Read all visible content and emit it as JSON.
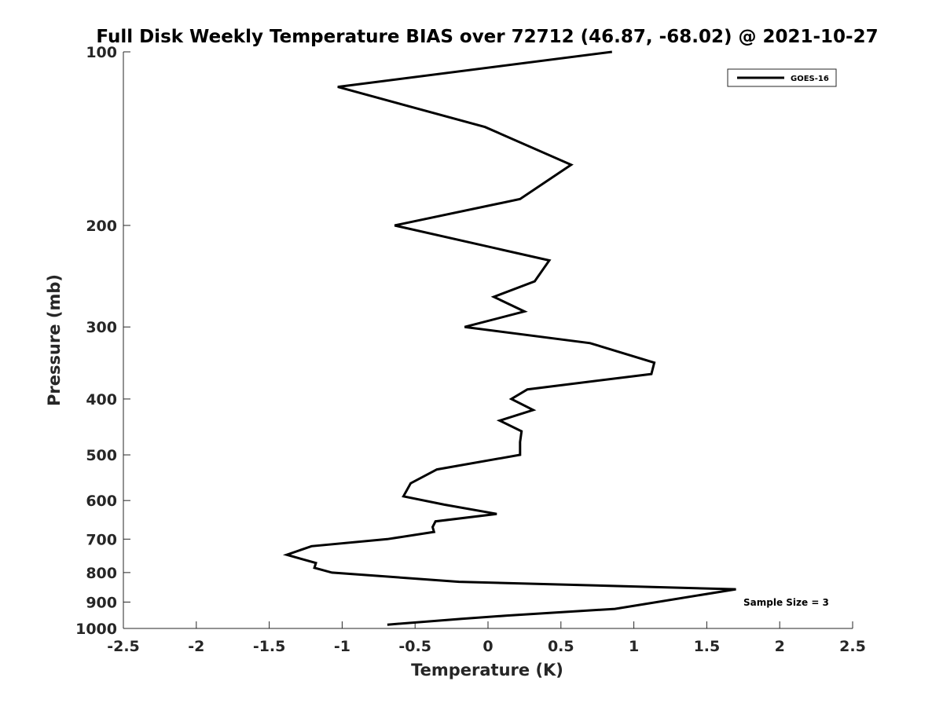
{
  "chart_data": {
    "type": "line",
    "title": "Full Disk Weekly Temperature BIAS over 72712 (46.87, -68.02) @ 2021-10-27",
    "xlabel": "Temperature (K)",
    "ylabel": "Pressure (mb)",
    "xlim": [
      -2.5,
      2.5
    ],
    "ylim": [
      100,
      1000
    ],
    "y_scale": "log",
    "y_reversed": true,
    "x_ticks": [
      "-2.5",
      "-2",
      "-1.5",
      "-1",
      "-0.5",
      "0",
      "0.5",
      "1",
      "1.5",
      "2",
      "2.5"
    ],
    "y_ticks": [
      "100",
      "200",
      "300",
      "400",
      "500",
      "600",
      "700",
      "800",
      "900",
      "1000"
    ],
    "grid": false,
    "legend_position": "top-right",
    "series": [
      {
        "name": "GOES-16",
        "color": "#000000",
        "points": [
          {
            "x": 0.85,
            "y": 100
          },
          {
            "x": -1.03,
            "y": 115
          },
          {
            "x": -0.02,
            "y": 135
          },
          {
            "x": 0.57,
            "y": 157
          },
          {
            "x": 0.22,
            "y": 180
          },
          {
            "x": -0.64,
            "y": 200
          },
          {
            "x": 0.42,
            "y": 230
          },
          {
            "x": 0.32,
            "y": 250
          },
          {
            "x": 0.04,
            "y": 266
          },
          {
            "x": 0.25,
            "y": 282
          },
          {
            "x": -0.16,
            "y": 300
          },
          {
            "x": 0.7,
            "y": 320
          },
          {
            "x": 1.14,
            "y": 346
          },
          {
            "x": 1.12,
            "y": 362
          },
          {
            "x": 0.27,
            "y": 385
          },
          {
            "x": 0.16,
            "y": 400
          },
          {
            "x": 0.31,
            "y": 418
          },
          {
            "x": 0.08,
            "y": 436
          },
          {
            "x": 0.23,
            "y": 455
          },
          {
            "x": 0.22,
            "y": 475
          },
          {
            "x": 0.22,
            "y": 500
          },
          {
            "x": -0.35,
            "y": 530
          },
          {
            "x": -0.53,
            "y": 560
          },
          {
            "x": -0.58,
            "y": 590
          },
          {
            "x": -0.3,
            "y": 610
          },
          {
            "x": 0.06,
            "y": 633
          },
          {
            "x": -0.36,
            "y": 652
          },
          {
            "x": -0.38,
            "y": 667
          },
          {
            "x": -0.37,
            "y": 680
          },
          {
            "x": -0.69,
            "y": 700
          },
          {
            "x": -1.21,
            "y": 720
          },
          {
            "x": -1.38,
            "y": 745
          },
          {
            "x": -1.18,
            "y": 770
          },
          {
            "x": -1.19,
            "y": 785
          },
          {
            "x": -1.07,
            "y": 800
          },
          {
            "x": -0.2,
            "y": 830
          },
          {
            "x": 1.7,
            "y": 855
          },
          {
            "x": 0.87,
            "y": 925
          },
          {
            "x": 0.13,
            "y": 950
          },
          {
            "x": -0.18,
            "y": 962
          },
          {
            "x": -0.69,
            "y": 985
          }
        ]
      }
    ],
    "annotations": [
      {
        "text": "Sample Size = 3"
      }
    ]
  }
}
